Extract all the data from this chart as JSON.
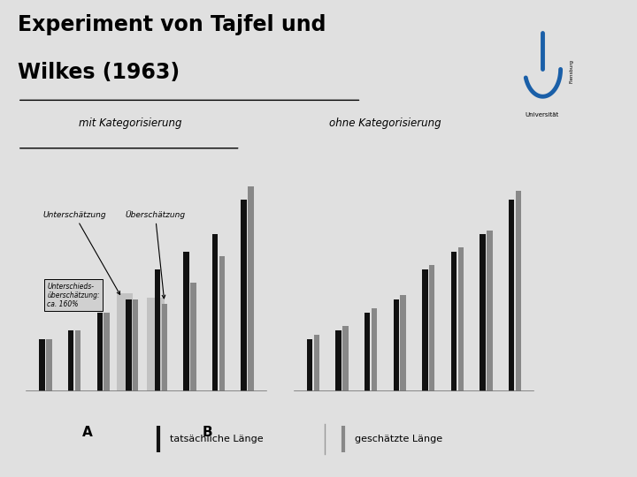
{
  "title_line1": "Experiment von Tajfel und",
  "title_line2": "Wilkes (1963)",
  "slide_bg": "#e0e0e0",
  "right_panel_color": "#006080",
  "right_panel2_color": "#004a6e",
  "label_mit": "mit Kategorisierung",
  "label_ohne": "ohne Kategorisierung",
  "legend_actual": "tatsächliche Länge",
  "legend_estimated": "geschätzte Länge",
  "annotation1": "Unterschätzung",
  "annotation2": "Überschätzung",
  "annotation3": "Unterschieds-\nüberschätzung:\nca. 160%",
  "group_A_label": "A",
  "group_B_label": "B",
  "left_actual_heights": [
    12,
    14,
    18,
    21,
    28,
    32,
    36,
    44
  ],
  "left_estimated_heights": [
    12,
    14,
    18,
    21,
    20,
    25,
    31,
    47
  ],
  "right_actual_heights": [
    12,
    14,
    18,
    21,
    28,
    32,
    36,
    44
  ],
  "right_estimated_heights": [
    13,
    15,
    19,
    22,
    29,
    33,
    37,
    46
  ],
  "bar_color_actual": "#111111",
  "bar_color_estimated": "#888888"
}
